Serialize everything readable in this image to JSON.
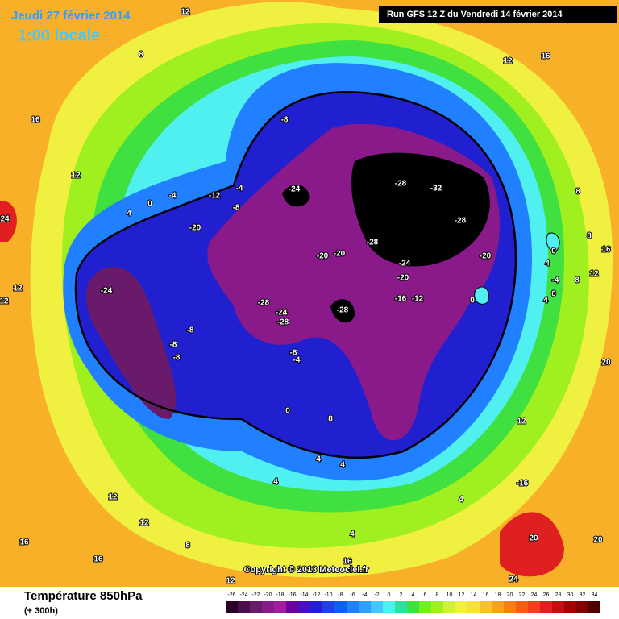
{
  "header": {
    "date": "Jeudi 27 février 2014",
    "time": "1:00 locale",
    "run": "Run GFS 12 Z du Vendredi 14 février 2014"
  },
  "map": {
    "copyright": "Copyright © 2013 Meteociel.fr",
    "contour_labels": [
      12,
      8,
      12,
      16,
      16,
      -8,
      12,
      -4,
      -12,
      -4,
      0,
      4,
      -8,
      24,
      -20,
      -24,
      -28,
      -32,
      -28,
      8,
      8,
      -28,
      -20,
      -20,
      -24,
      -20,
      4,
      0,
      16,
      12,
      -24,
      -20,
      -4,
      8,
      12,
      0,
      4,
      -16,
      -12,
      0,
      -28,
      -28,
      -24,
      -28,
      12,
      -8,
      -8,
      -8,
      -8,
      -4,
      20,
      0,
      8,
      12,
      4,
      4,
      4,
      -16,
      4,
      12,
      12,
      16,
      4,
      20,
      20,
      8,
      16,
      16,
      12,
      24
    ]
  },
  "footer": {
    "title": "Température 850hPa",
    "subtitle": "(+ 300h)"
  },
  "legend": {
    "values": [
      -26,
      -24,
      -22,
      -20,
      -18,
      -16,
      -14,
      -12,
      -10,
      -8,
      -6,
      -4,
      -2,
      0,
      2,
      4,
      6,
      8,
      10,
      12,
      14,
      16,
      18,
      20,
      22,
      24,
      26,
      28,
      30,
      32,
      34
    ],
    "colors": [
      "#2a002a",
      "#4a0f4a",
      "#6a1a6a",
      "#8a1a8a",
      "#a01ca0",
      "#6a00a0",
      "#4a10c0",
      "#2020d0",
      "#2040e0",
      "#1060f0",
      "#2080ff",
      "#30a0ff",
      "#40c8ff",
      "#50f0f0",
      "#30e0a0",
      "#40e040",
      "#70f020",
      "#a0f020",
      "#d0f040",
      "#f0f040",
      "#f8e040",
      "#f8c030",
      "#f8a020",
      "#f88010",
      "#f06010",
      "#f04020",
      "#e02020",
      "#c01010",
      "#a00000",
      "#800000",
      "#500000"
    ]
  }
}
